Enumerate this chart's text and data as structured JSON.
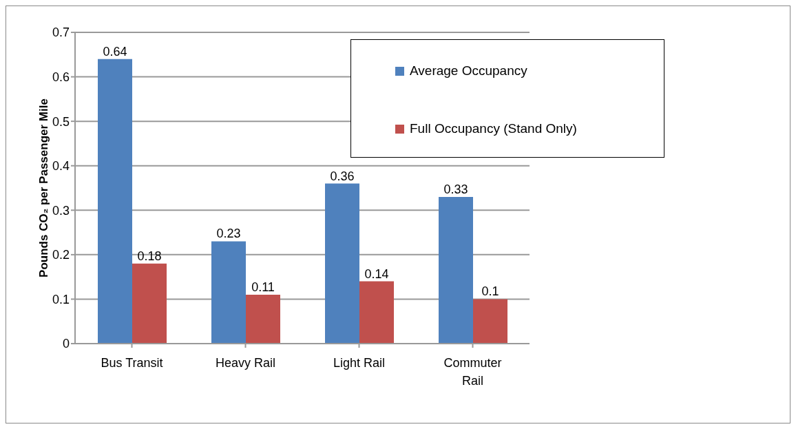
{
  "chart_data": {
    "type": "bar",
    "ylabel": "Pounds CO₂ per Passenger Mile",
    "categories": [
      "Bus Transit",
      "Heavy Rail",
      "Light Rail",
      "Commuter Rail"
    ],
    "series": [
      {
        "name": "Average Occupancy",
        "color": "#4f81bd",
        "values": [
          0.64,
          0.23,
          0.36,
          0.33
        ]
      },
      {
        "name": "Full Occupancy (Stand Only)",
        "color": "#c0504d",
        "values": [
          0.18,
          0.11,
          0.14,
          0.1
        ]
      }
    ],
    "ylim": [
      0,
      0.7
    ],
    "yticks": [
      0,
      0.1,
      0.2,
      0.3,
      0.4,
      0.5,
      0.6,
      0.7
    ],
    "grid": "y",
    "legend": "top right",
    "data_labels": true
  }
}
